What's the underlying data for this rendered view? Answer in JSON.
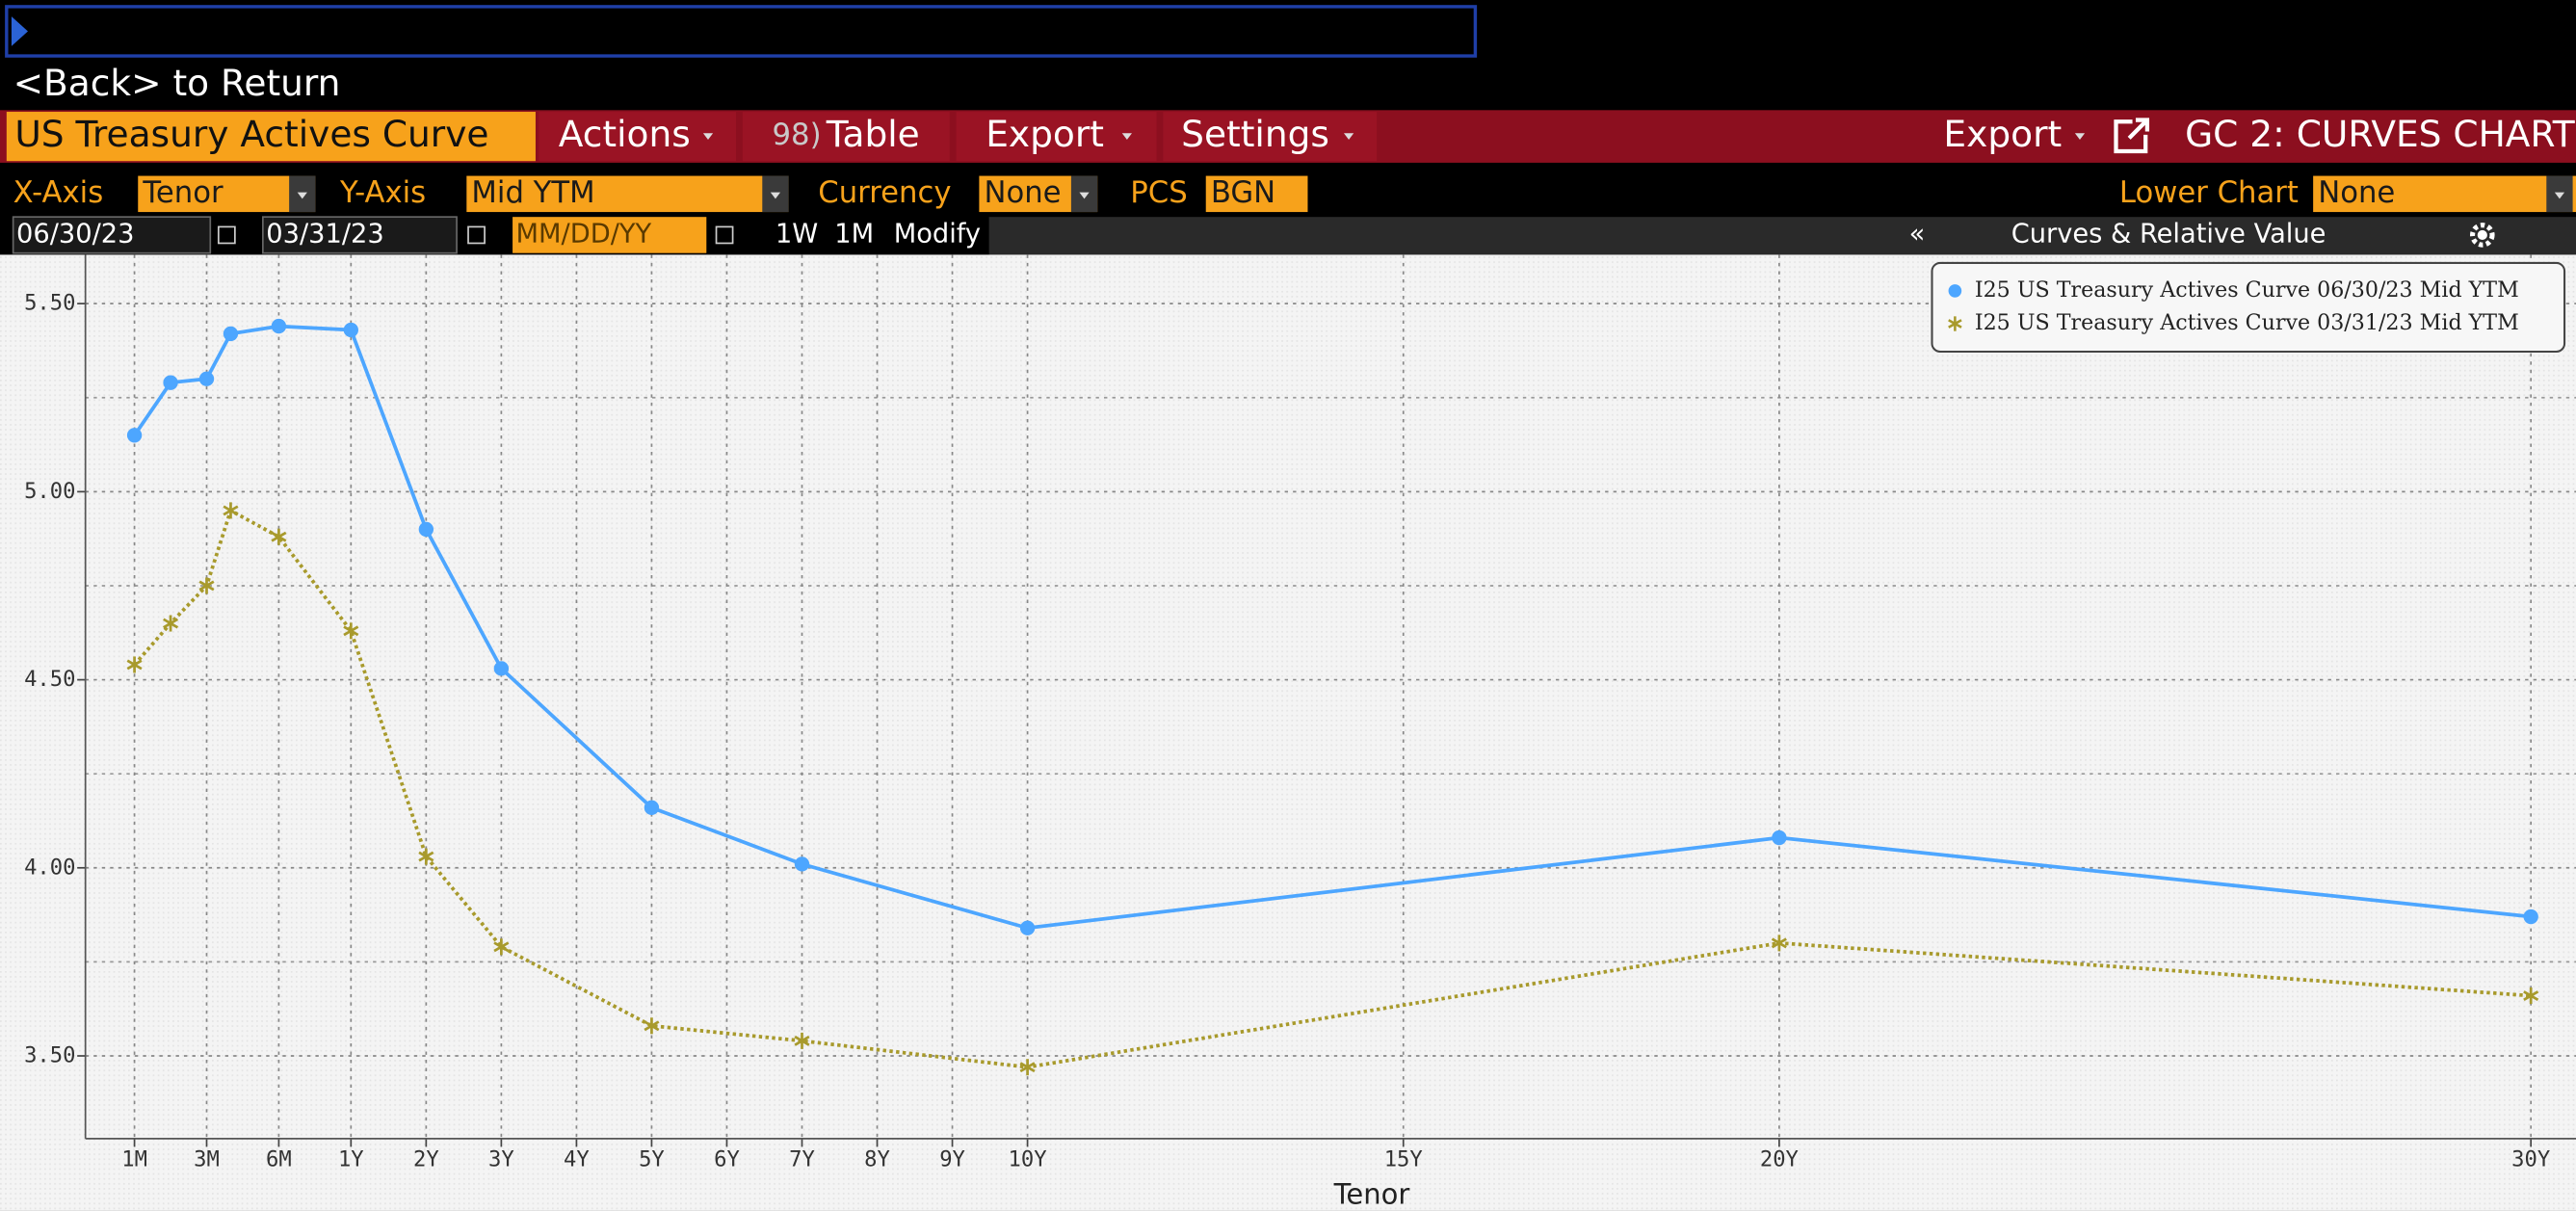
{
  "header": {
    "back": "<Back> to Return"
  },
  "toolbar": {
    "title": "US Treasury Actives Curve",
    "actions": "Actions",
    "table_number": "98)",
    "table": "Table",
    "export": "Export",
    "settings": "Settings",
    "export_right": "Export",
    "chart_name": "GC 2: CURVES CHART"
  },
  "options": {
    "x_axis_label": "X-Axis",
    "x_axis": "Tenor",
    "y_axis_label": "Y-Axis",
    "y_axis": "Mid YTM",
    "currency_label": "Currency",
    "currency": "None",
    "pcs_label": "PCS",
    "pcs": "BGN",
    "lower_chart_label": "Lower Chart",
    "lower_chart": "None"
  },
  "dates": {
    "date_1": "06/30/23",
    "date_2": "03/31/23",
    "date_3": "MM/DD/YY",
    "one_week": "1W",
    "one_month": "1M",
    "modify": "Modify",
    "collapse": "«",
    "panel": "Curves & Relative Value"
  },
  "chart_data": {
    "type": "line",
    "xlabel": "Tenor",
    "x": [
      0.0833,
      0.1667,
      0.25,
      0.3333,
      0.5,
      1,
      2,
      3,
      5,
      7,
      10,
      20,
      30
    ],
    "series": [
      {
        "name": "I25 US Treasury Actives Curve 06/30/23 Mid YTM",
        "color": "#4da6ff",
        "marker": "circle",
        "line_style": "solid",
        "values": [
          5.15,
          5.29,
          5.3,
          5.42,
          5.44,
          5.43,
          4.9,
          4.53,
          4.16,
          4.01,
          3.84,
          4.08,
          3.87
        ]
      },
      {
        "name": "I25 US Treasury Actives Curve 03/31/23 Mid YTM",
        "color": "#a89a2c",
        "marker": "asterisk",
        "line_style": "dotted",
        "values": [
          4.54,
          4.65,
          4.75,
          4.95,
          4.88,
          4.63,
          4.03,
          3.79,
          3.58,
          3.54,
          3.47,
          3.8,
          3.66
        ]
      }
    ],
    "xlim": [
      -0.03,
      30.6
    ],
    "xticks": [
      {
        "value": 0.0833,
        "label": "1M"
      },
      {
        "value": 0.25,
        "label": "3M"
      },
      {
        "value": 0.5,
        "label": "6M"
      },
      {
        "value": 1,
        "label": "1Y"
      },
      {
        "value": 2,
        "label": "2Y"
      },
      {
        "value": 3,
        "label": "3Y"
      },
      {
        "value": 4,
        "label": "4Y"
      },
      {
        "value": 5,
        "label": "5Y"
      },
      {
        "value": 6,
        "label": "6Y"
      },
      {
        "value": 7,
        "label": "7Y"
      },
      {
        "value": 8,
        "label": "8Y"
      },
      {
        "value": 9,
        "label": "9Y"
      },
      {
        "value": 10,
        "label": "10Y"
      },
      {
        "value": 15,
        "label": "15Y"
      },
      {
        "value": 20,
        "label": "20Y"
      },
      {
        "value": 30,
        "label": "30Y"
      }
    ],
    "ylim": [
      3.28,
      5.63
    ],
    "yticks": [
      {
        "value": 3.5,
        "label": "3.50"
      },
      {
        "value": 4,
        "label": "4.00"
      },
      {
        "value": 4.5,
        "label": "4.50"
      },
      {
        "value": 5,
        "label": "5.00"
      },
      {
        "value": 5.5,
        "label": "5.50"
      }
    ],
    "minor_yticks": [
      3.75,
      4.25,
      4.75,
      5.25
    ],
    "grid": true,
    "legend": "upper right"
  }
}
